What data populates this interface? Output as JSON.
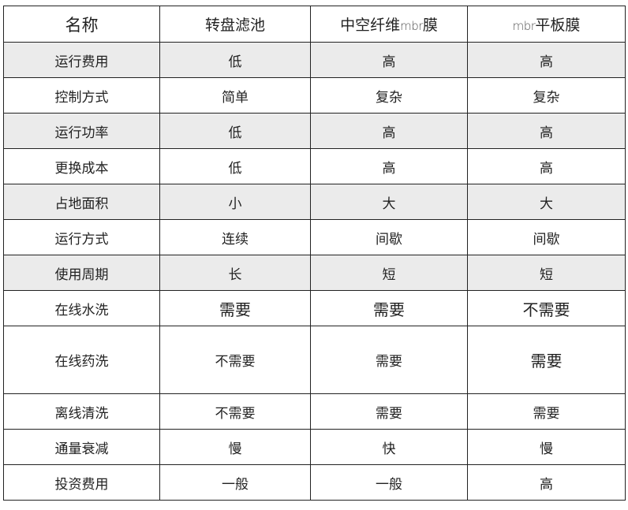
{
  "table": {
    "headers": [
      "名称",
      "转盘滤池",
      "中空纤维",
      "mbr",
      "膜",
      "平板膜"
    ],
    "header_cells": {
      "name": "名称",
      "col1": "转盘滤池",
      "col2_prefix": "中空纤维",
      "col2_mbr": "mbr",
      "col2_suffix": "膜",
      "col3_mbr": "mbr",
      "col3_suffix": "平板膜"
    },
    "rows": [
      {
        "cells": [
          "运行费用",
          "低",
          "高",
          "高"
        ],
        "shaded": true
      },
      {
        "cells": [
          "控制方式",
          "简单",
          "复杂",
          "复杂"
        ],
        "shaded": false
      },
      {
        "cells": [
          "运行功率",
          "低",
          "高",
          "高"
        ],
        "shaded": true
      },
      {
        "cells": [
          "更换成本",
          "低",
          "高",
          "高"
        ],
        "shaded": false
      },
      {
        "cells": [
          "占地面积",
          "小",
          "大",
          "大"
        ],
        "shaded": true
      },
      {
        "cells": [
          "运行方式",
          "连续",
          "间歇",
          "间歇"
        ],
        "shaded": false
      },
      {
        "cells": [
          "使用周期",
          "长",
          "短",
          "短"
        ],
        "shaded": true
      },
      {
        "cells": [
          "在线水洗",
          "需要",
          "需要",
          "不需要"
        ],
        "shaded": false
      },
      {
        "cells": [
          "在线药洗",
          "不需要",
          "需要",
          "需要"
        ],
        "shaded": false
      },
      {
        "cells": [
          "离线清洗",
          "不需要",
          "需要",
          "需要"
        ],
        "shaded": false
      },
      {
        "cells": [
          "通量衰减",
          "慢",
          "快",
          "慢"
        ],
        "shaded": false
      },
      {
        "cells": [
          "投资费用",
          "一般",
          "一般",
          "高"
        ],
        "shaded": false
      }
    ]
  },
  "colors": {
    "shade": "#ebebeb",
    "border": "#222222"
  }
}
